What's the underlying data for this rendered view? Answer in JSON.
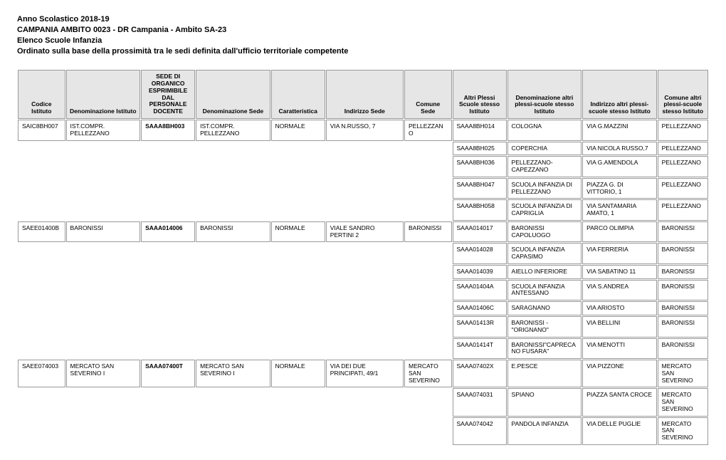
{
  "title_lines": [
    "Anno Scolastico 2018-19",
    "CAMPANIA AMBITO 0023 - DR Campania - Ambito SA-23",
    "Elenco Scuole Infanzia",
    "Ordinato sulla base della prossimità tra le sedi definita dall'ufficio territoriale competente"
  ],
  "columns": [
    {
      "label": "Codice Istituto",
      "width": "7%"
    },
    {
      "label": "Denominazione Istituto",
      "width": "11%"
    },
    {
      "label": "SEDE DI ORGANICO ESPRIMIBILE DAL PERSONALE DOCENTE",
      "width": "8%"
    },
    {
      "label": "Denominazione Sede",
      "width": "11%"
    },
    {
      "label": "Caratteristica",
      "width": "8%"
    },
    {
      "label": "Indirizzo Sede",
      "width": "11.5%"
    },
    {
      "label": "Comune Sede",
      "width": "7%"
    },
    {
      "label": "Altri Plessi Scuole stesso Istituto",
      "width": "8%"
    },
    {
      "label": "Denominazione altri plessi-scuole stesso Istituto",
      "width": "11%"
    },
    {
      "label": "Indirizzo altri plessi-scuole stesso Istituto",
      "width": "11%"
    },
    {
      "label": "Comune altri plessi-scuole stesso Istituto",
      "width": "7.5%"
    }
  ],
  "rows": [
    {
      "cells": [
        "SAIC8BH007",
        "IST.COMPR. PELLEZZANO",
        "SAAA8BH003",
        "IST.COMPR. PELLEZZANO",
        "NORMALE",
        "VIA N.RUSSO, 7",
        "PELLEZZANO",
        "SAAA8BH014",
        "COLOGNA",
        "VIA G.MAZZINI",
        "PELLEZZANO"
      ],
      "empty": [],
      "bold": [
        2
      ]
    },
    {
      "cells": [
        "",
        "",
        "",
        "",
        "",
        "",
        "",
        "SAAA8BH025",
        "COPERCHIA",
        "VIA NICOLA RUSSO,7",
        "PELLEZZANO"
      ],
      "empty": [
        0,
        1,
        2,
        3,
        4,
        5,
        6
      ]
    },
    {
      "cells": [
        "",
        "",
        "",
        "",
        "",
        "",
        "",
        "SAAA8BH036",
        "PELLEZZANO-CAPEZZANO",
        "VIA G.AMENDOLA",
        "PELLEZZANO"
      ],
      "empty": [
        0,
        1,
        2,
        3,
        4,
        5,
        6
      ]
    },
    {
      "cells": [
        "",
        "",
        "",
        "",
        "",
        "",
        "",
        "SAAA8BH047",
        "SCUOLA INFANZIA DI PELLEZZANO",
        "PIAZZA G. DI VITTORIO, 1",
        "PELLEZZANO"
      ],
      "empty": [
        0,
        1,
        2,
        3,
        4,
        5,
        6
      ]
    },
    {
      "cells": [
        "",
        "",
        "",
        "",
        "",
        "",
        "",
        "SAAA8BH058",
        "SCUOLA INFANZIA DI CAPRIGLIA",
        "VIA SANTAMARIA AMATO, 1",
        "PELLEZZANO"
      ],
      "empty": [
        0,
        1,
        2,
        3,
        4,
        5,
        6
      ]
    },
    {
      "cells": [
        "SAEE01400B",
        "BARONISSI",
        "SAAA014006",
        "BARONISSI",
        "NORMALE",
        "VIALE SANDRO PERTINI 2",
        "BARONISSI",
        "SAAA014017",
        "BARONISSI CAPOLUOGO",
        "PARCO OLIMPIA",
        "BARONISSI"
      ],
      "empty": [],
      "bold": [
        2
      ]
    },
    {
      "cells": [
        "",
        "",
        "",
        "",
        "",
        "",
        "",
        "SAAA014028",
        "SCUOLA INFANZIA CAPASIMO",
        "VIA FERRERIA",
        "BARONISSI"
      ],
      "empty": [
        0,
        1,
        2,
        3,
        4,
        5,
        6
      ]
    },
    {
      "cells": [
        "",
        "",
        "",
        "",
        "",
        "",
        "",
        "SAAA014039",
        "AIELLO INFERIORE",
        "VIA SABATINO 11",
        "BARONISSI"
      ],
      "empty": [
        0,
        1,
        2,
        3,
        4,
        5,
        6
      ]
    },
    {
      "cells": [
        "",
        "",
        "",
        "",
        "",
        "",
        "",
        "SAAA01404A",
        "SCUOLA INFANZIA ANTESSANO",
        "VIA S.ANDREA",
        "BARONISSI"
      ],
      "empty": [
        0,
        1,
        2,
        3,
        4,
        5,
        6
      ]
    },
    {
      "cells": [
        "",
        "",
        "",
        "",
        "",
        "",
        "",
        "SAAA01406C",
        "SARAGNANO",
        "VIA ARIOSTO",
        "BARONISSI"
      ],
      "empty": [
        0,
        1,
        2,
        3,
        4,
        5,
        6
      ]
    },
    {
      "cells": [
        "",
        "",
        "",
        "",
        "",
        "",
        "",
        "SAAA01413R",
        "BARONISSI - \"ORIGNANO\"",
        "VIA BELLINI",
        "BARONISSI"
      ],
      "empty": [
        0,
        1,
        2,
        3,
        4,
        5,
        6
      ]
    },
    {
      "cells": [
        "",
        "",
        "",
        "",
        "",
        "",
        "",
        "SAAA01414T",
        "BARONISSI\"CAPRECANO FUSARA\"",
        "VIA MENOTTI",
        "BARONISSI"
      ],
      "empty": [
        0,
        1,
        2,
        3,
        4,
        5,
        6
      ]
    },
    {
      "cells": [
        "SAEE074003",
        "MERCATO SAN SEVERINO I",
        "SAAA07400T",
        "MERCATO SAN SEVERINO I",
        "NORMALE",
        "VIA DEI DUE PRINCIPATI, 49/1",
        "MERCATO SAN SEVERINO",
        "SAAA07402X",
        "E.PESCE",
        "VIA PIZZONE",
        "MERCATO SAN SEVERINO"
      ],
      "empty": [],
      "bold": [
        2
      ]
    },
    {
      "cells": [
        "",
        "",
        "",
        "",
        "",
        "",
        "",
        "SAAA074031",
        "SPIANO",
        "PIAZZA SANTA CROCE",
        "MERCATO SAN SEVERINO"
      ],
      "empty": [
        0,
        1,
        2,
        3,
        4,
        5,
        6
      ]
    },
    {
      "cells": [
        "",
        "",
        "",
        "",
        "",
        "",
        "",
        "SAAA074042",
        "PANDOLA INFANZIA",
        "VIA DELLE PUGLIE",
        "MERCATO SAN SEVERINO"
      ],
      "empty": [
        0,
        1,
        2,
        3,
        4,
        5,
        6
      ]
    }
  ]
}
